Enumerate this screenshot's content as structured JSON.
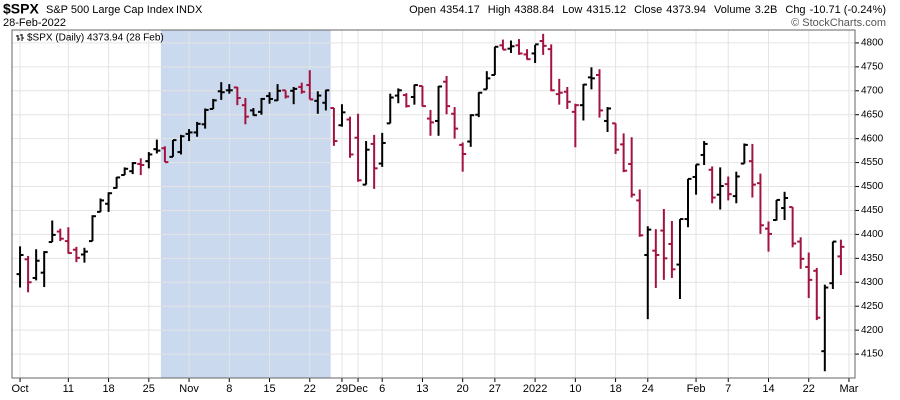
{
  "header": {
    "symbol": "$SPX",
    "name": "S&P 500 Large Cap Index",
    "exchange": "INDX",
    "date": "28-Feb-2022",
    "copyright": "© StockCharts.com",
    "stats": [
      {
        "label": "Open",
        "value": "4354.17"
      },
      {
        "label": "High",
        "value": "4388.84"
      },
      {
        "label": "Low",
        "value": "4315.12"
      },
      {
        "label": "Close",
        "value": "4373.94"
      },
      {
        "label": "Volume",
        "value": "3.2B"
      },
      {
        "label": "Chg",
        "value": "-10.71 (-0.24%)"
      }
    ]
  },
  "chart_data": {
    "type": "ohlc",
    "legend": "$SPX (Daily) 4373.94 (28 Feb)",
    "up_color": "#000000",
    "down_color": "#a3133f",
    "shade_color": "#cad9ee",
    "shaded_range": [
      17.5,
      38.6
    ],
    "xlim": [
      -1,
      103.75
    ],
    "ylim": [
      4100,
      4827
    ],
    "xticks": [
      {
        "value": 0,
        "label": "Oct"
      },
      {
        "value": 6,
        "label": "11"
      },
      {
        "value": 11,
        "label": "18"
      },
      {
        "value": 16,
        "label": "25"
      },
      {
        "value": 21,
        "label": "Nov"
      },
      {
        "value": 26,
        "label": "8"
      },
      {
        "value": 31,
        "label": "15"
      },
      {
        "value": 36,
        "label": "22"
      },
      {
        "value": 40,
        "label": "29"
      },
      {
        "value": 42,
        "label": "Dec"
      },
      {
        "value": 45,
        "label": "6"
      },
      {
        "value": 50,
        "label": "13"
      },
      {
        "value": 55,
        "label": "20"
      },
      {
        "value": 59,
        "label": "27"
      },
      {
        "value": 64,
        "label": "2022"
      },
      {
        "value": 69,
        "label": "10"
      },
      {
        "value": 74,
        "label": "18"
      },
      {
        "value": 78,
        "label": "24"
      },
      {
        "value": 84,
        "label": "Feb"
      },
      {
        "value": 88,
        "label": "7"
      },
      {
        "value": 93,
        "label": "14"
      },
      {
        "value": 98,
        "label": "22"
      },
      {
        "value": 103,
        "label": "Mar"
      }
    ],
    "yticks": [
      4150,
      4200,
      4250,
      4300,
      4350,
      4400,
      4450,
      4500,
      4550,
      4600,
      4650,
      4700,
      4750,
      4800
    ],
    "open": [
      4317,
      4348,
      4309,
      4320,
      4384,
      4406,
      4386,
      4368,
      4358,
      4386,
      4447,
      4464,
      4497,
      4524,
      4532,
      4547,
      4553,
      4578,
      4580,
      4562,
      4572,
      4610,
      4613,
      4630,
      4662,
      4699,
      4701,
      4707,
      4670,
      4659,
      4656,
      4689,
      4680,
      4701,
      4700,
      4708,
      4712,
      4679,
      4675,
      4664,
      4628,
      4640,
      4602,
      4504,
      4589,
      4548,
      4632,
      4690,
      4691,
      4687,
      4710,
      4642,
      4637,
      4719,
      4652,
      4587,
      4594,
      4650,
      4703,
      4733,
      4795,
      4788,
      4795,
      4776,
      4778,
      4804,
      4787,
      4693,
      4698,
      4656,
      4670,
      4728,
      4733,
      4637,
      4632,
      4588,
      4547,
      4471,
      4357,
      4366,
      4408,
      4380,
      4337,
      4432,
      4520,
      4566,
      4535,
      4483,
      4505,
      4480,
      4548,
      4553,
      4507,
      4412,
      4430,
      4455,
      4457,
      4385,
      4332,
      4324,
      4156,
      4298,
      4354
    ],
    "high": [
      4375,
      4355,
      4369,
      4365,
      4429,
      4412,
      4415,
      4374,
      4372,
      4440,
      4475,
      4488,
      4520,
      4540,
      4551,
      4559,
      4572,
      4598,
      4584,
      4597,
      4608,
      4620,
      4635,
      4663,
      4683,
      4718,
      4714,
      4708,
      4685,
      4664,
      4685,
      4697,
      4714,
      4701,
      4708,
      4717,
      4743,
      4699,
      4702,
      4664,
      4672,
      4646,
      4652,
      4595,
      4608,
      4612,
      4694,
      4705,
      4695,
      4713,
      4710,
      4660,
      4710,
      4731,
      4666,
      4592,
      4651,
      4697,
      4741,
      4792,
      4807,
      4805,
      4808,
      4787,
      4796,
      4819,
      4797,
      4725,
      4708,
      4673,
      4714,
      4749,
      4745,
      4666,
      4632,
      4611,
      4603,
      4494,
      4417,
      4411,
      4453,
      4428,
      4432,
      4516,
      4546,
      4595,
      4542,
      4540,
      4521,
      4531,
      4590,
      4589,
      4527,
      4427,
      4472,
      4489,
      4457,
      4394,
      4362,
      4330,
      4295,
      4385,
      4389
    ],
    "low": [
      4289,
      4279,
      4304,
      4290,
      4384,
      4386,
      4360,
      4342,
      4341,
      4386,
      4447,
      4447,
      4496,
      4524,
      4526,
      4524,
      4538,
      4569,
      4551,
      4562,
      4567,
      4595,
      4604,
      4621,
      4662,
      4681,
      4694,
      4670,
      4630,
      4648,
      4650,
      4673,
      4679,
      4684,
      4672,
      4694,
      4682,
      4652,
      4659,
      4585,
      4625,
      4560,
      4510,
      4504,
      4495,
      4541,
      4632,
      4674,
      4665,
      4671,
      4667,
      4606,
      4606,
      4651,
      4600,
      4531,
      4583,
      4645,
      4703,
      4733,
      4786,
      4779,
      4775,
      4765,
      4758,
      4775,
      4699,
      4671,
      4662,
      4582,
      4638,
      4703,
      4644,
      4614,
      4568,
      4530,
      4477,
      4395,
      4223,
      4288,
      4305,
      4309,
      4265,
      4415,
      4483,
      4545,
      4465,
      4452,
      4471,
      4465,
      4548,
      4477,
      4401,
      4364,
      4429,
      4430,
      4373,
      4328,
      4267,
      4221,
      4114,
      4286,
      4315
    ],
    "close": [
      4357,
      4300,
      4345,
      4363,
      4399,
      4391,
      4361,
      4351,
      4364,
      4438,
      4471,
      4486,
      4519,
      4537,
      4549,
      4545,
      4567,
      4575,
      4551,
      4597,
      4605,
      4613,
      4631,
      4660,
      4680,
      4697,
      4701,
      4685,
      4646,
      4649,
      4683,
      4683,
      4700,
      4688,
      4704,
      4698,
      4682,
      4690,
      4701,
      4595,
      4655,
      4567,
      4513,
      4577,
      4538,
      4591,
      4686,
      4701,
      4668,
      4712,
      4668,
      4634,
      4709,
      4668,
      4621,
      4568,
      4649,
      4696,
      4726,
      4792,
      4786,
      4793,
      4778,
      4766,
      4797,
      4794,
      4701,
      4696,
      4677,
      4670,
      4713,
      4726,
      4659,
      4663,
      4577,
      4533,
      4483,
      4398,
      4410,
      4357,
      4350,
      4327,
      4432,
      4516,
      4546,
      4589,
      4477,
      4501,
      4484,
      4521,
      4587,
      4504,
      4419,
      4401,
      4472,
      4476,
      4381,
      4349,
      4305,
      4226,
      4289,
      4385,
      4374
    ]
  }
}
